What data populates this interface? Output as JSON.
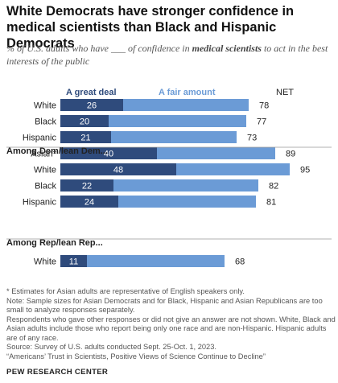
{
  "title": "White Democrats have stronger confidence in medical scientists than Black and Hispanic Democrats",
  "subtitle": {
    "before": "% of U.S. adults who have ___ of confidence in ",
    "emphasis": "medical scientists",
    "after": " to act in the best interests of the public"
  },
  "colors": {
    "great_deal": "#2f4b7c",
    "fair_amount": "#6b9bd6",
    "divider": "#999999",
    "legend_great_deal": "#2f4b7c",
    "legend_fair_amount": "#6b9bd6"
  },
  "chart_data": {
    "type": "bar",
    "orientation": "horizontal",
    "stacked": true,
    "xlim": [
      0,
      100
    ],
    "legend": [
      "A great deal",
      "A fair amount"
    ],
    "net_label": "NET",
    "groups": [
      {
        "label": "",
        "rows": [
          {
            "category": "White",
            "great_deal": 26,
            "net": 78
          },
          {
            "category": "Black",
            "great_deal": 20,
            "net": 77
          },
          {
            "category": "Hispanic",
            "great_deal": 21,
            "net": 73
          },
          {
            "category": "Asian*",
            "great_deal": 40,
            "net": 89
          }
        ]
      },
      {
        "label": "Among Dem/lean Dem...",
        "rows": [
          {
            "category": "White",
            "great_deal": 48,
            "net": 95
          },
          {
            "category": "Black",
            "great_deal": 22,
            "net": 82
          },
          {
            "category": "Hispanic",
            "great_deal": 24,
            "net": 81
          }
        ]
      },
      {
        "label": "Among Rep/lean Rep...",
        "rows": [
          {
            "category": "White",
            "great_deal": 11,
            "net": 68
          }
        ]
      }
    ]
  },
  "notes": [
    "* Estimates for Asian adults are representative of English speakers only.",
    "Note: Sample sizes for Asian Democrats and for Black, Hispanic and Asian Republicans are too small to analyze responses separately.",
    "Respondents who gave other responses or did not give an answer are not shown. White, Black and Asian adults include those who report being only one race and are non-Hispanic. Hispanic adults are of any race.",
    "Source: Survey of U.S. adults conducted Sept. 25-Oct. 1, 2023.",
    "“Americans’ Trust in Scientists, Positive Views of Science Continue to Decline”"
  ],
  "source_brand": "PEW RESEARCH CENTER"
}
